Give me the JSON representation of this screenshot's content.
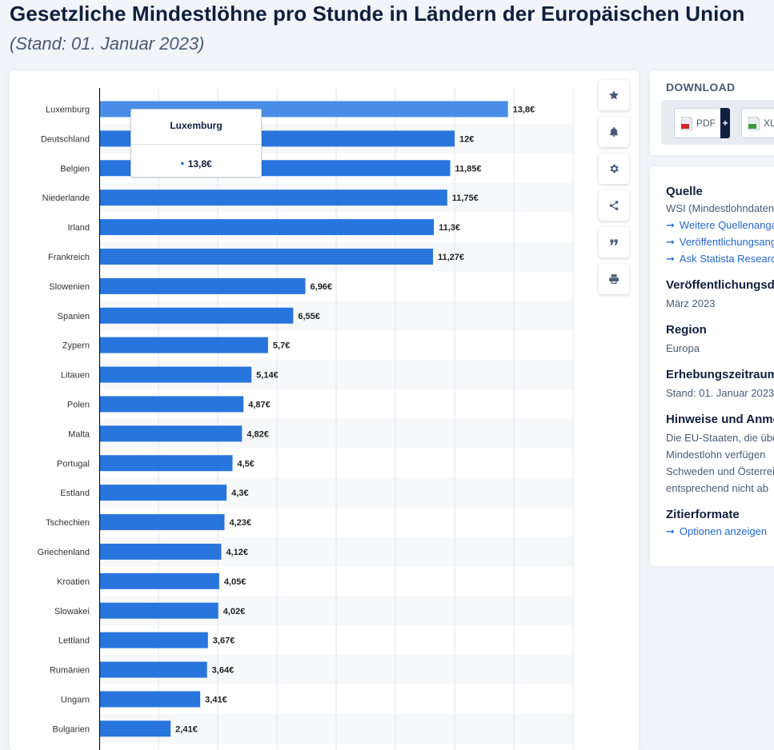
{
  "page": {
    "title": "Gesetzliche Mindestlöhne pro Stunde in Ländern der Europäischen Union",
    "subtitle": "(Stand: 01. Januar 2023)"
  },
  "tooltip": {
    "title": "Luxemburg",
    "value": "13,8€"
  },
  "tools": [
    {
      "name": "favorite",
      "icon": "star-icon"
    },
    {
      "name": "notification",
      "icon": "bell-icon"
    },
    {
      "name": "settings",
      "icon": "gear-icon"
    },
    {
      "name": "share",
      "icon": "share-icon"
    },
    {
      "name": "cite",
      "icon": "quote-icon"
    },
    {
      "name": "print",
      "icon": "print-icon"
    }
  ],
  "download": {
    "heading": "DOWNLOAD",
    "pdf_label": "PDF",
    "plus_label": "+",
    "xls_label": "XL"
  },
  "info": {
    "source_heading": "Quelle",
    "source_text": "WSI (Mindestlohndaten)",
    "source_links": [
      "Weitere Quellenangaben",
      "Veröffentlichungsangaben",
      "Ask Statista Research"
    ],
    "publication_heading": "Veröffentlichungsdatum",
    "publication_text": "März 2023",
    "region_heading": "Region",
    "region_text": "Europa",
    "period_heading": "Erhebungszeitraum",
    "period_text": "Stand: 01. Januar 2023",
    "notes_heading": "Hinweise und Anmerkungen",
    "notes_lines": [
      "Die EU-Staaten, die über",
      "Mindestlohn verfügen",
      "Schweden und Österreich",
      "entsprechend nicht ab"
    ],
    "cite_heading": "Zitierformate",
    "cite_link": "Optionen anzeigen"
  },
  "colors": {
    "bar": "#2876dd",
    "bar_highlight": "#4a8de6",
    "stripe": "#f7f8fa",
    "grid": "#e2e6ec",
    "axis": "#000000"
  },
  "chart_data": {
    "type": "bar",
    "orientation": "horizontal",
    "title": "Gesetzliche Mindestlöhne pro Stunde in Ländern der Europäischen Union",
    "subtitle": "(Stand: 01. Januar 2023)",
    "categories": [
      "Luxemburg",
      "Deutschland",
      "Belgien",
      "Niederlande",
      "Irland",
      "Frankreich",
      "Slowenien",
      "Spanien",
      "Zypern",
      "Litauen",
      "Polen",
      "Malta",
      "Portugal",
      "Estland",
      "Tschechien",
      "Griechenland",
      "Kroatien",
      "Slowakei",
      "Lettland",
      "Rumänien",
      "Ungarn",
      "Bulgarien"
    ],
    "values": [
      13.8,
      12,
      11.85,
      11.75,
      11.3,
      11.27,
      6.96,
      6.55,
      5.7,
      5.14,
      4.87,
      4.82,
      4.5,
      4.3,
      4.23,
      4.12,
      4.05,
      4.02,
      3.67,
      3.64,
      3.41,
      2.41
    ],
    "value_labels": [
      "13,8€",
      "12€",
      "11,85€",
      "11,75€",
      "11,3€",
      "11,27€",
      "6,96€",
      "6,55€",
      "5,7€",
      "5,14€",
      "4,87€",
      "4,82€",
      "4,5€",
      "4,3€",
      "4,23€",
      "4,12€",
      "4,05€",
      "4,02€",
      "3,67€",
      "3,64€",
      "3,41€",
      "2,41€"
    ],
    "xlim": [
      0,
      16
    ],
    "x_grid_step": 2,
    "highlighted": "Luxemburg",
    "xlabel": "",
    "ylabel": "",
    "grid": true
  }
}
